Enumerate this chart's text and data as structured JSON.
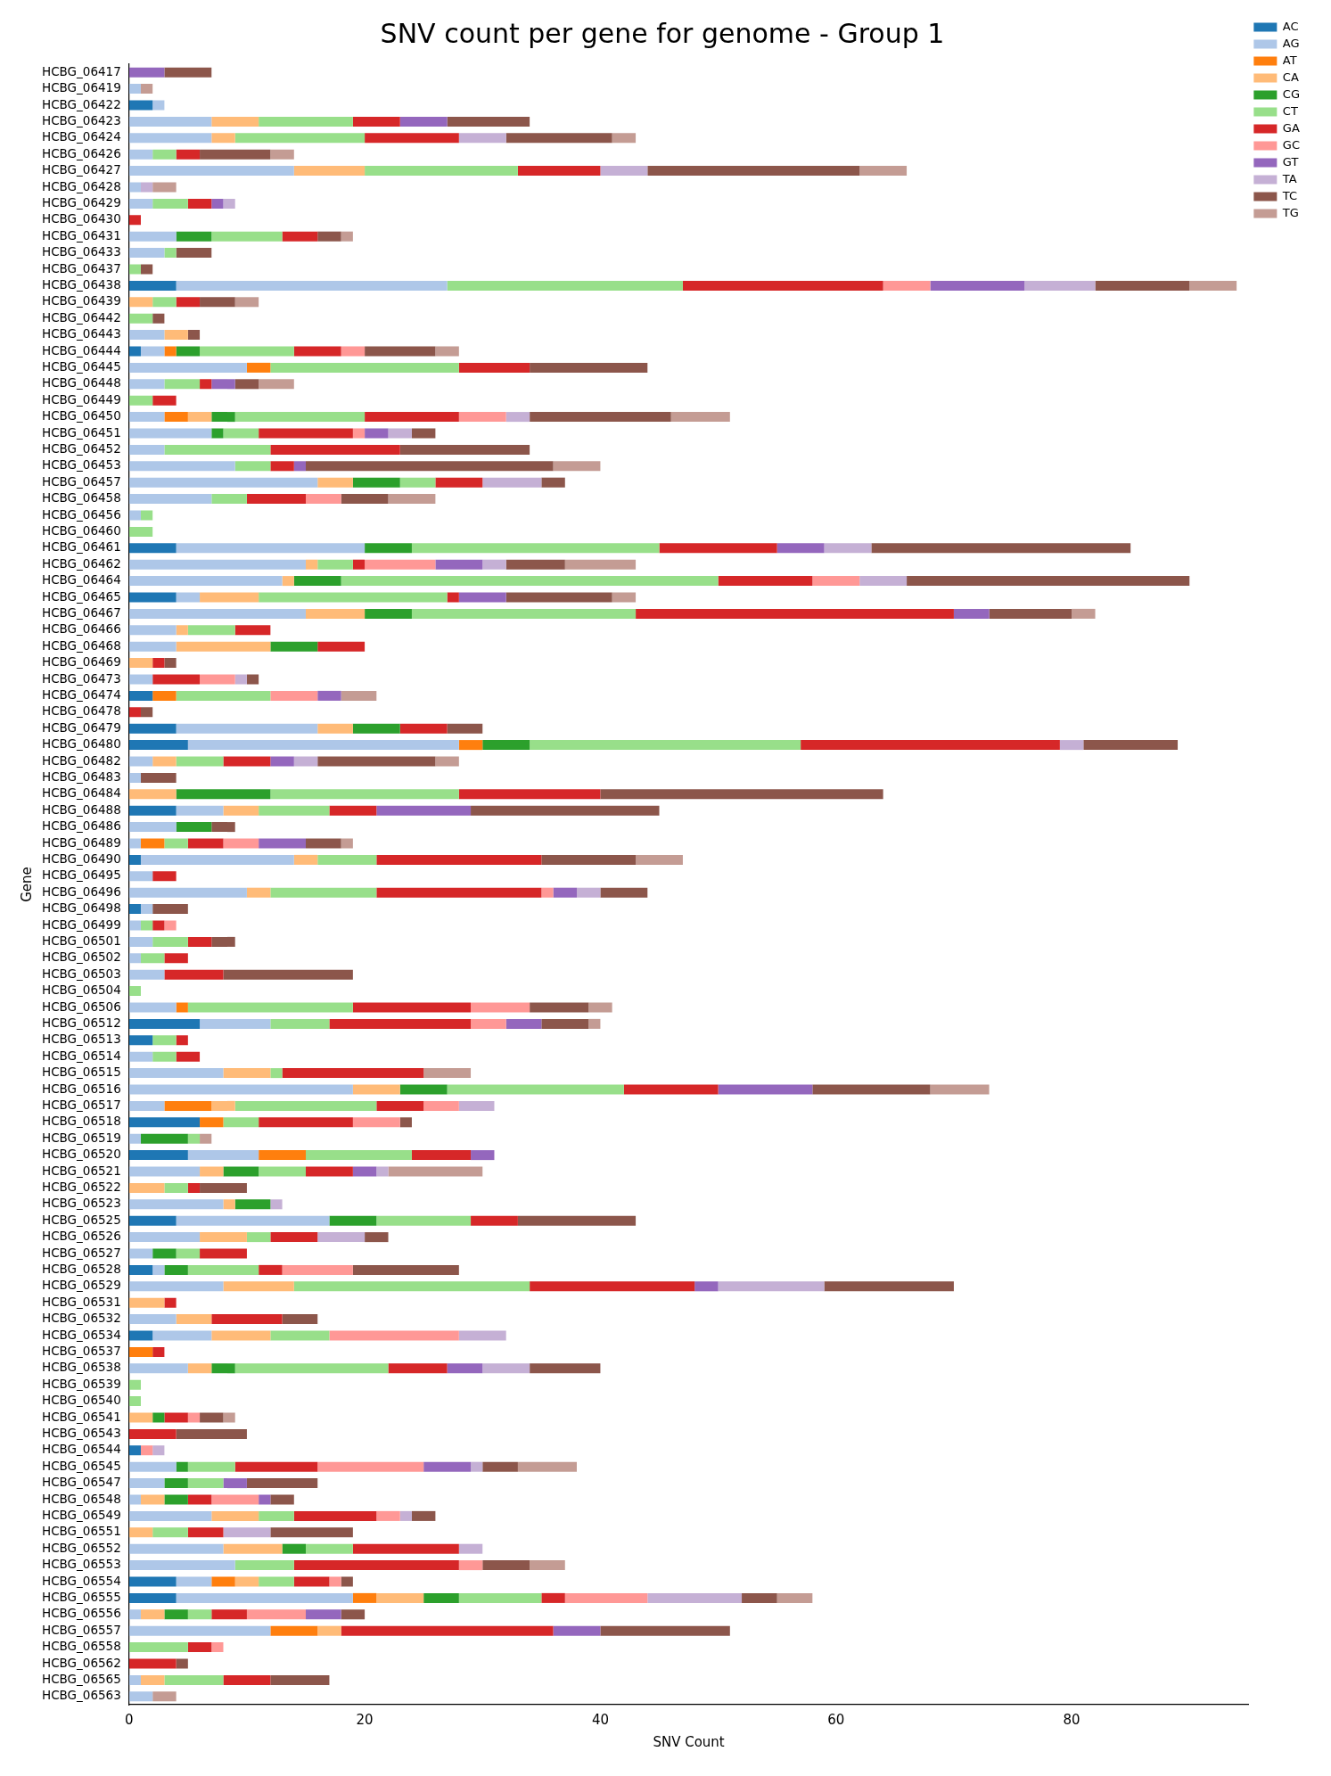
{
  "chart_data": {
    "type": "bar",
    "orientation": "horizontal",
    "stacked": true,
    "title": "SNV count per gene for genome - Group 1",
    "xlabel": "SNV Count",
    "ylabel": "Gene",
    "legend": "top right",
    "grid": false,
    "xlim": [
      0,
      95
    ],
    "xticks": [
      0,
      20,
      40,
      60,
      80
    ],
    "categories": [
      "HCBG_06417",
      "HCBG_06419",
      "HCBG_06422",
      "HCBG_06423",
      "HCBG_06424",
      "HCBG_06426",
      "HCBG_06427",
      "HCBG_06428",
      "HCBG_06429",
      "HCBG_06430",
      "HCBG_06431",
      "HCBG_06433",
      "HCBG_06437",
      "HCBG_06438",
      "HCBG_06439",
      "HCBG_06442",
      "HCBG_06443",
      "HCBG_06444",
      "HCBG_06445",
      "HCBG_06448",
      "HCBG_06449",
      "HCBG_06450",
      "HCBG_06451",
      "HCBG_06452",
      "HCBG_06453",
      "HCBG_06457",
      "HCBG_06458",
      "HCBG_06456",
      "HCBG_06460",
      "HCBG_06461",
      "HCBG_06462",
      "HCBG_06464",
      "HCBG_06465",
      "HCBG_06467",
      "HCBG_06466",
      "HCBG_06468",
      "HCBG_06469",
      "HCBG_06473",
      "HCBG_06474",
      "HCBG_06478",
      "HCBG_06479",
      "HCBG_06480",
      "HCBG_06482",
      "HCBG_06483",
      "HCBG_06484",
      "HCBG_06488",
      "HCBG_06486",
      "HCBG_06489",
      "HCBG_06490",
      "HCBG_06495",
      "HCBG_06496",
      "HCBG_06498",
      "HCBG_06499",
      "HCBG_06501",
      "HCBG_06502",
      "HCBG_06503",
      "HCBG_06504",
      "HCBG_06506",
      "HCBG_06512",
      "HCBG_06513",
      "HCBG_06514",
      "HCBG_06515",
      "HCBG_06516",
      "HCBG_06517",
      "HCBG_06518",
      "HCBG_06519",
      "HCBG_06520",
      "HCBG_06521",
      "HCBG_06522",
      "HCBG_06523",
      "HCBG_06525",
      "HCBG_06526",
      "HCBG_06527",
      "HCBG_06528",
      "HCBG_06529",
      "HCBG_06531",
      "HCBG_06532",
      "HCBG_06534",
      "HCBG_06537",
      "HCBG_06538",
      "HCBG_06539",
      "HCBG_06540",
      "HCBG_06541",
      "HCBG_06543",
      "HCBG_06544",
      "HCBG_06545",
      "HCBG_06547",
      "HCBG_06548",
      "HCBG_06549",
      "HCBG_06551",
      "HCBG_06552",
      "HCBG_06553",
      "HCBG_06554",
      "HCBG_06555",
      "HCBG_06556",
      "HCBG_06557",
      "HCBG_06558",
      "HCBG_06562",
      "HCBG_06565",
      "HCBG_06563"
    ],
    "series": [
      {
        "name": "AC",
        "color": "#1f77b4",
        "values": [
          0,
          0,
          2,
          0,
          0,
          0,
          0,
          0,
          0,
          0,
          0,
          0,
          0,
          4,
          0,
          0,
          0,
          1,
          0,
          0,
          0,
          0,
          0,
          0,
          0,
          0,
          0,
          0,
          0,
          4,
          0,
          0,
          4,
          0,
          0,
          0,
          0,
          0,
          2,
          0,
          4,
          5,
          0,
          0,
          0,
          4,
          0,
          0,
          1,
          0,
          0,
          1,
          0,
          0,
          0,
          0,
          0,
          0,
          6,
          2,
          0,
          0,
          0,
          0,
          6,
          0,
          5,
          0,
          0,
          0,
          4,
          0,
          0,
          2,
          0,
          0,
          0,
          2,
          0,
          0,
          0,
          0,
          0,
          0,
          1,
          0,
          0,
          0,
          0,
          0,
          0,
          0,
          4,
          4,
          0,
          0,
          0,
          0,
          0,
          0
        ]
      },
      {
        "name": "AG",
        "color": "#aec7e8",
        "values": [
          0,
          1,
          1,
          7,
          7,
          2,
          14,
          1,
          2,
          0,
          4,
          3,
          0,
          23,
          0,
          0,
          3,
          2,
          10,
          3,
          0,
          3,
          7,
          3,
          9,
          16,
          7,
          1,
          0,
          16,
          15,
          13,
          2,
          15,
          4,
          4,
          0,
          2,
          0,
          0,
          12,
          23,
          2,
          1,
          0,
          4,
          4,
          1,
          13,
          2,
          10,
          1,
          1,
          2,
          1,
          3,
          0,
          4,
          6,
          0,
          2,
          8,
          19,
          3,
          0,
          1,
          6,
          6,
          0,
          8,
          13,
          6,
          2,
          1,
          8,
          0,
          4,
          5,
          0,
          5,
          0,
          0,
          0,
          0,
          0,
          4,
          3,
          1,
          7,
          0,
          8,
          9,
          3,
          15,
          1,
          12,
          0,
          0,
          1,
          2
        ]
      },
      {
        "name": "AT",
        "color": "#ff7f0e",
        "values": [
          0,
          0,
          0,
          0,
          0,
          0,
          0,
          0,
          0,
          0,
          0,
          0,
          0,
          0,
          0,
          0,
          0,
          1,
          2,
          0,
          0,
          2,
          0,
          0,
          0,
          0,
          0,
          0,
          0,
          0,
          0,
          0,
          0,
          0,
          0,
          0,
          0,
          0,
          2,
          0,
          0,
          2,
          0,
          0,
          0,
          0,
          0,
          2,
          0,
          0,
          0,
          0,
          0,
          0,
          0,
          0,
          0,
          1,
          0,
          0,
          0,
          0,
          0,
          4,
          2,
          0,
          4,
          0,
          0,
          0,
          0,
          0,
          0,
          0,
          0,
          0,
          0,
          0,
          2,
          0,
          0,
          0,
          0,
          0,
          0,
          0,
          0,
          0,
          0,
          0,
          0,
          0,
          2,
          2,
          0,
          4,
          0,
          0,
          0,
          0
        ]
      },
      {
        "name": "CA",
        "color": "#ffbb78",
        "values": [
          0,
          0,
          0,
          4,
          2,
          0,
          6,
          0,
          0,
          0,
          0,
          0,
          0,
          0,
          2,
          0,
          2,
          0,
          0,
          0,
          0,
          2,
          0,
          0,
          0,
          3,
          0,
          0,
          0,
          0,
          1,
          1,
          5,
          5,
          1,
          8,
          2,
          0,
          0,
          0,
          3,
          0,
          2,
          0,
          4,
          3,
          0,
          0,
          2,
          0,
          2,
          0,
          0,
          0,
          0,
          0,
          0,
          0,
          0,
          0,
          0,
          4,
          4,
          2,
          0,
          0,
          0,
          2,
          3,
          1,
          0,
          4,
          0,
          0,
          6,
          3,
          3,
          5,
          0,
          2,
          0,
          0,
          2,
          0,
          0,
          0,
          0,
          2,
          4,
          2,
          5,
          0,
          2,
          4,
          2,
          2,
          0,
          0,
          2,
          0
        ]
      },
      {
        "name": "CG",
        "color": "#2ca02c",
        "values": [
          0,
          0,
          0,
          0,
          0,
          0,
          0,
          0,
          0,
          0,
          3,
          0,
          0,
          0,
          0,
          0,
          0,
          2,
          0,
          0,
          0,
          2,
          1,
          0,
          0,
          4,
          0,
          0,
          0,
          4,
          0,
          4,
          0,
          4,
          0,
          4,
          0,
          0,
          0,
          0,
          4,
          4,
          0,
          0,
          8,
          0,
          3,
          0,
          0,
          0,
          0,
          0,
          0,
          0,
          0,
          0,
          0,
          0,
          0,
          0,
          0,
          0,
          4,
          0,
          0,
          4,
          0,
          3,
          0,
          3,
          4,
          0,
          2,
          2,
          0,
          0,
          0,
          0,
          0,
          2,
          0,
          0,
          1,
          0,
          0,
          1,
          2,
          2,
          0,
          0,
          2,
          0,
          0,
          3,
          2,
          0,
          0,
          0,
          0,
          0
        ]
      },
      {
        "name": "CT",
        "color": "#98df8a",
        "values": [
          0,
          0,
          0,
          8,
          11,
          2,
          13,
          0,
          3,
          0,
          6,
          1,
          1,
          20,
          2,
          2,
          0,
          8,
          16,
          3,
          2,
          11,
          3,
          9,
          3,
          3,
          3,
          1,
          2,
          21,
          3,
          32,
          16,
          19,
          4,
          0,
          0,
          0,
          8,
          0,
          0,
          23,
          4,
          0,
          16,
          6,
          0,
          2,
          5,
          0,
          9,
          0,
          1,
          3,
          2,
          0,
          1,
          14,
          5,
          2,
          2,
          1,
          15,
          12,
          3,
          1,
          9,
          4,
          2,
          0,
          8,
          2,
          2,
          6,
          20,
          0,
          0,
          5,
          0,
          13,
          1,
          1,
          0,
          0,
          0,
          4,
          3,
          0,
          3,
          3,
          4,
          5,
          3,
          7,
          2,
          0,
          5,
          0,
          5,
          0
        ]
      },
      {
        "name": "GA",
        "color": "#d62728",
        "values": [
          0,
          0,
          0,
          4,
          8,
          2,
          7,
          0,
          2,
          1,
          3,
          0,
          0,
          17,
          2,
          0,
          0,
          4,
          6,
          1,
          2,
          8,
          8,
          11,
          2,
          4,
          5,
          0,
          0,
          10,
          1,
          8,
          1,
          27,
          3,
          4,
          1,
          4,
          0,
          1,
          4,
          22,
          4,
          0,
          12,
          4,
          0,
          3,
          14,
          2,
          14,
          0,
          1,
          2,
          2,
          5,
          0,
          10,
          12,
          1,
          2,
          12,
          8,
          4,
          8,
          0,
          5,
          4,
          1,
          0,
          4,
          4,
          4,
          2,
          14,
          1,
          6,
          0,
          1,
          5,
          0,
          0,
          2,
          4,
          0,
          7,
          0,
          2,
          7,
          3,
          9,
          14,
          3,
          2,
          3,
          18,
          2,
          4,
          4,
          0
        ]
      },
      {
        "name": "GC",
        "color": "#ff9896",
        "values": [
          0,
          0,
          0,
          0,
          0,
          0,
          0,
          0,
          0,
          0,
          0,
          0,
          0,
          4,
          0,
          0,
          0,
          2,
          0,
          0,
          0,
          4,
          1,
          0,
          0,
          0,
          3,
          0,
          0,
          0,
          6,
          4,
          0,
          0,
          0,
          0,
          0,
          3,
          4,
          0,
          0,
          0,
          0,
          0,
          0,
          0,
          0,
          3,
          0,
          0,
          1,
          0,
          1,
          0,
          0,
          0,
          0,
          5,
          3,
          0,
          0,
          0,
          0,
          3,
          4,
          0,
          0,
          0,
          0,
          0,
          0,
          0,
          0,
          6,
          0,
          0,
          0,
          11,
          0,
          0,
          0,
          0,
          1,
          0,
          1,
          9,
          0,
          4,
          2,
          0,
          0,
          2,
          1,
          7,
          5,
          0,
          1,
          0,
          0,
          0
        ]
      },
      {
        "name": "GT",
        "color": "#9467bd",
        "values": [
          3,
          0,
          0,
          4,
          0,
          0,
          0,
          0,
          1,
          0,
          0,
          0,
          0,
          8,
          0,
          0,
          0,
          0,
          0,
          2,
          0,
          0,
          2,
          0,
          1,
          0,
          0,
          0,
          0,
          4,
          4,
          0,
          4,
          3,
          0,
          0,
          0,
          0,
          2,
          0,
          0,
          0,
          2,
          0,
          0,
          8,
          0,
          4,
          0,
          0,
          2,
          0,
          0,
          0,
          0,
          0,
          0,
          0,
          3,
          0,
          0,
          0,
          8,
          0,
          0,
          0,
          2,
          2,
          0,
          0,
          0,
          0,
          0,
          0,
          2,
          0,
          0,
          0,
          0,
          3,
          0,
          0,
          0,
          0,
          0,
          4,
          2,
          1,
          0,
          0,
          0,
          0,
          0,
          0,
          3,
          4,
          0,
          0,
          0,
          0
        ]
      },
      {
        "name": "TA",
        "color": "#c5b0d5",
        "values": [
          0,
          0,
          0,
          0,
          4,
          0,
          4,
          1,
          1,
          0,
          0,
          0,
          0,
          6,
          0,
          0,
          0,
          0,
          0,
          0,
          0,
          2,
          2,
          0,
          0,
          5,
          0,
          0,
          0,
          4,
          2,
          4,
          0,
          0,
          0,
          0,
          0,
          1,
          0,
          0,
          0,
          2,
          2,
          0,
          0,
          0,
          0,
          0,
          0,
          0,
          2,
          0,
          0,
          0,
          0,
          0,
          0,
          0,
          0,
          0,
          0,
          0,
          0,
          3,
          0,
          0,
          0,
          1,
          0,
          1,
          0,
          4,
          0,
          0,
          9,
          0,
          0,
          4,
          0,
          4,
          0,
          0,
          0,
          0,
          1,
          1,
          0,
          0,
          1,
          4,
          2,
          0,
          0,
          8,
          0,
          0,
          0,
          0,
          0,
          0
        ]
      },
      {
        "name": "TC",
        "color": "#8c564b",
        "values": [
          4,
          0,
          0,
          7,
          9,
          6,
          18,
          0,
          0,
          0,
          2,
          3,
          1,
          8,
          3,
          1,
          1,
          6,
          10,
          2,
          0,
          12,
          2,
          11,
          21,
          2,
          4,
          0,
          0,
          22,
          5,
          24,
          9,
          7,
          0,
          0,
          1,
          1,
          0,
          1,
          3,
          8,
          10,
          3,
          24,
          16,
          2,
          3,
          8,
          0,
          4,
          3,
          0,
          2,
          0,
          11,
          0,
          5,
          4,
          0,
          0,
          0,
          10,
          0,
          1,
          0,
          0,
          0,
          4,
          0,
          10,
          2,
          0,
          9,
          11,
          0,
          3,
          0,
          0,
          6,
          0,
          0,
          2,
          6,
          0,
          3,
          6,
          2,
          2,
          7,
          0,
          4,
          1,
          3,
          2,
          11,
          0,
          1,
          5,
          0
        ]
      },
      {
        "name": "TG",
        "color": "#c49c94",
        "values": [
          0,
          1,
          0,
          0,
          2,
          2,
          4,
          2,
          0,
          0,
          1,
          0,
          0,
          4,
          2,
          0,
          0,
          2,
          0,
          3,
          0,
          5,
          0,
          0,
          4,
          0,
          4,
          0,
          0,
          0,
          6,
          0,
          2,
          2,
          0,
          0,
          0,
          0,
          3,
          0,
          0,
          0,
          2,
          0,
          0,
          0,
          0,
          1,
          4,
          0,
          0,
          0,
          0,
          0,
          0,
          0,
          0,
          2,
          1,
          0,
          0,
          4,
          5,
          0,
          0,
          1,
          0,
          8,
          0,
          0,
          0,
          0,
          0,
          0,
          0,
          0,
          0,
          0,
          0,
          0,
          0,
          0,
          1,
          0,
          0,
          5,
          0,
          0,
          0,
          0,
          0,
          3,
          0,
          3,
          0,
          0,
          0,
          0,
          0,
          2
        ]
      }
    ]
  }
}
